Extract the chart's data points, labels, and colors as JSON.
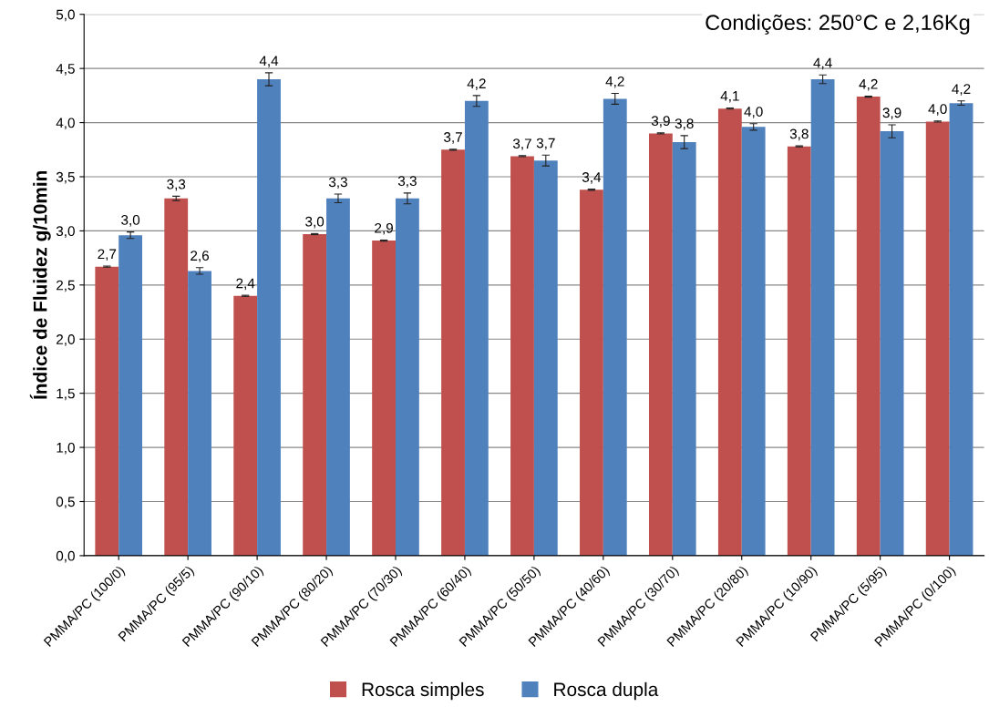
{
  "chart_data": {
    "type": "bar",
    "ylabel": "Índice de Fluidez g/10min",
    "annotations": [
      "Condições: 250°C e 2,16Kg"
    ],
    "categories": [
      "PMMA/PC (100/0)",
      "PMMA/PC (95/5)",
      "PMMA/PC (90/10)",
      "PMMA/PC (80/20)",
      "PMMA/PC (70/30)",
      "PMMA/PC (60/40)",
      "PMMA/PC (50/50)",
      "PMMA/PC (40/60)",
      "PMMA/PC (30/70)",
      "PMMA/PC (20/80)",
      "PMMA/PC (10/90)",
      "PMMA/PC (5/95)",
      "PMMA/PC (0/100)"
    ],
    "series": [
      {
        "name": "Rosca simples",
        "color": "#c0504d",
        "values": [
          2.67,
          3.3,
          2.4,
          2.97,
          2.91,
          3.75,
          3.69,
          3.38,
          3.9,
          4.13,
          3.78,
          4.24,
          4.01
        ],
        "errors": [
          0.005,
          0.02,
          0.005,
          0.005,
          0.005,
          0.005,
          0.005,
          0.005,
          0.005,
          0.005,
          0.005,
          0.005,
          0.005
        ],
        "value_labels": [
          "2,7",
          "3,3",
          "2,4",
          "3,0",
          "2,9",
          "3,7",
          "3,7",
          "3,4",
          "3,9",
          "4,1",
          "3,8",
          "4,2",
          "4,0"
        ]
      },
      {
        "name": "Rosca dupla",
        "color": "#4f81bd",
        "values": [
          2.96,
          2.63,
          4.4,
          3.3,
          3.3,
          4.2,
          3.65,
          4.22,
          3.82,
          3.96,
          4.4,
          3.92,
          4.18
        ],
        "errors": [
          0.03,
          0.03,
          0.06,
          0.04,
          0.05,
          0.05,
          0.05,
          0.05,
          0.06,
          0.03,
          0.04,
          0.06,
          0.02
        ],
        "value_labels": [
          "3,0",
          "2,6",
          "4,4",
          "3,3",
          "3,3",
          "4,2",
          "3,7",
          "4,2",
          "3,8",
          "4,0",
          "4,4",
          "3,9",
          "4,2"
        ]
      }
    ],
    "ylim": [
      0,
      5
    ],
    "yticks": [
      {
        "value": 0,
        "label": "0,0"
      },
      {
        "value": 0.5,
        "label": "0,5"
      },
      {
        "value": 1,
        "label": "1,0"
      },
      {
        "value": 1.5,
        "label": "1,5"
      },
      {
        "value": 2,
        "label": "2,0"
      },
      {
        "value": 2.5,
        "label": "2,5"
      },
      {
        "value": 3,
        "label": "3,0"
      },
      {
        "value": 3.5,
        "label": "3,5"
      },
      {
        "value": 4,
        "label": "4,0"
      },
      {
        "value": 4.5,
        "label": "4,5"
      },
      {
        "value": 5,
        "label": "5,0"
      }
    ],
    "grid": "y",
    "legend": "bottom"
  }
}
